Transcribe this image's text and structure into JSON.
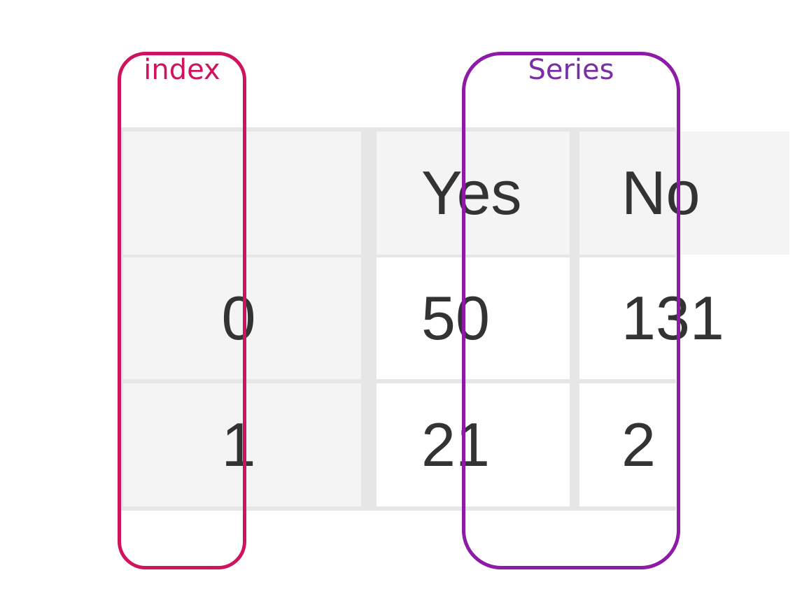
{
  "annotations": {
    "index": {
      "label": "index",
      "color": "#d0135e"
    },
    "series": {
      "label": "Series",
      "color": "#8e1aa8"
    }
  },
  "table": {
    "columns": [
      "",
      "Yes",
      "No"
    ],
    "rows": [
      {
        "index": "0",
        "values": [
          "50",
          "131"
        ]
      },
      {
        "index": "1",
        "values": [
          "21",
          "2"
        ]
      }
    ],
    "colors": {
      "header_bg": "#f4f4f4",
      "grid": "#e6e6e6",
      "text": "#333333"
    }
  }
}
